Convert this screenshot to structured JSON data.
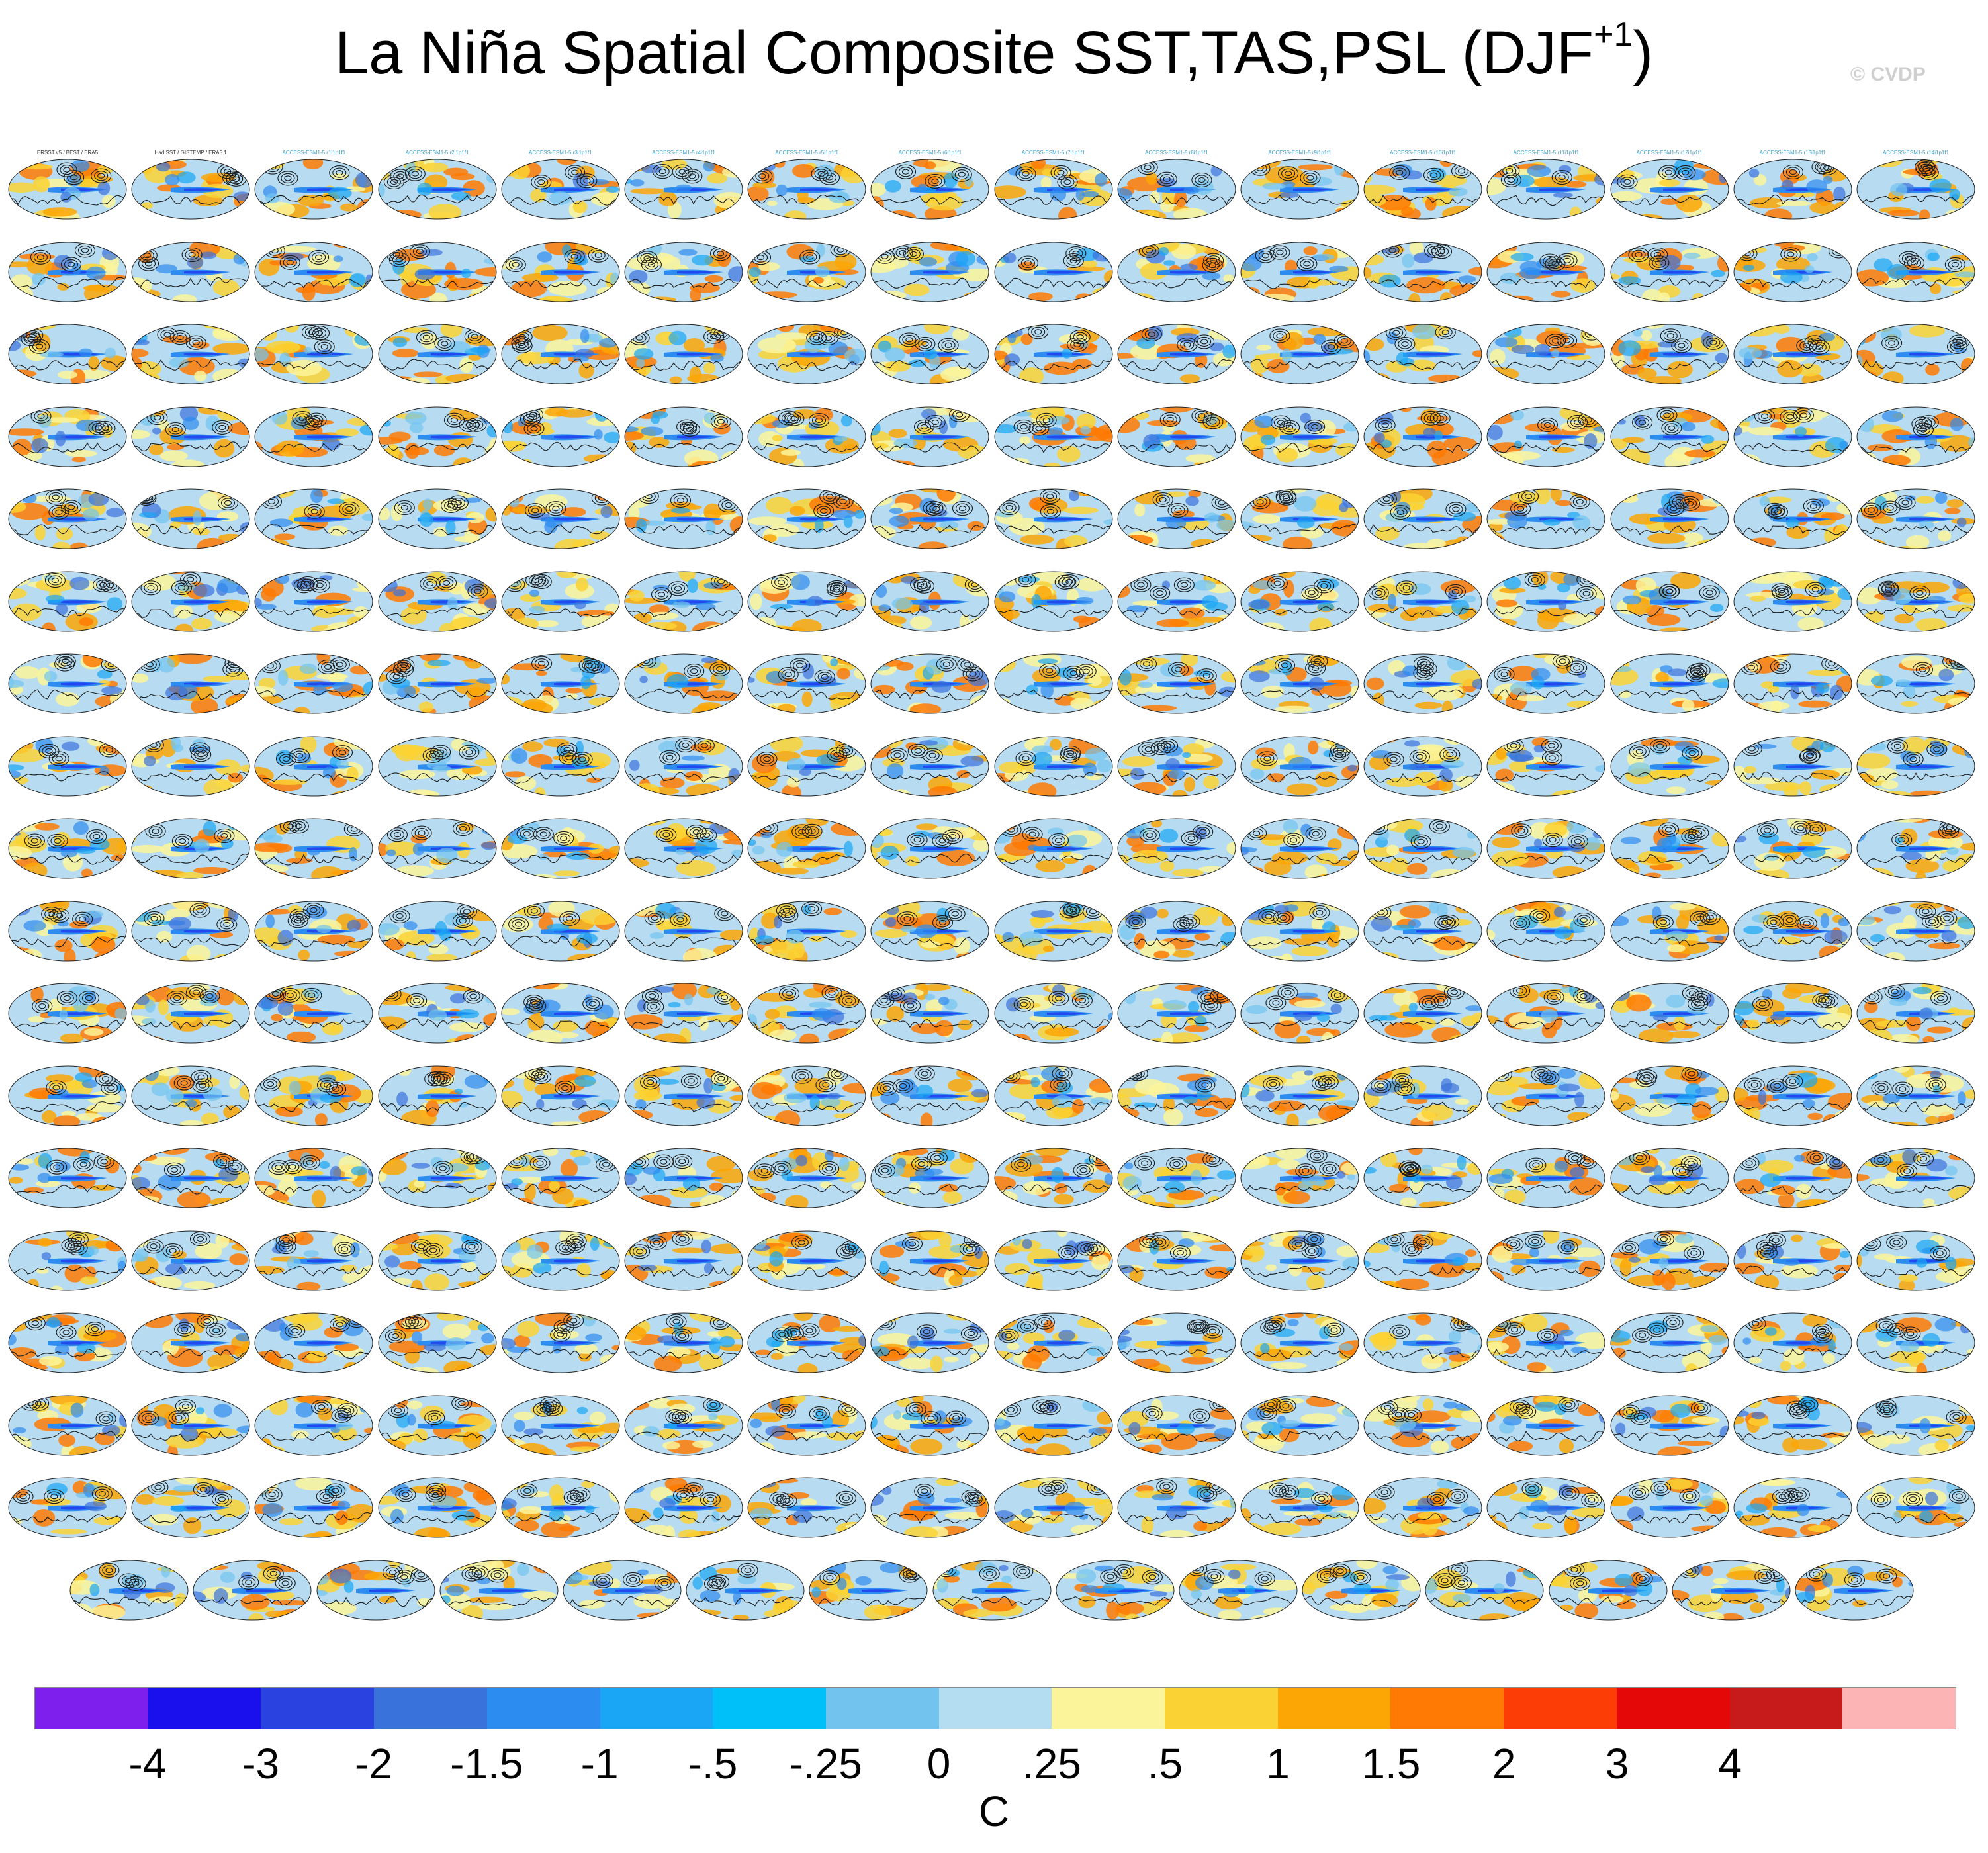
{
  "title": {
    "main": "La Niña Spatial Composite SST,TAS,PSL (DJF",
    "superscript": "+1",
    "close": ")"
  },
  "watermark": "© CVDP",
  "panel_grid": {
    "full_rows": 17,
    "panels_per_full_row": 16,
    "last_row_panels": 15
  },
  "panel_titles": [
    "ERSST v5 / BEST / ERA5",
    "HadISST / GISTEMP / ERA5.1",
    "ACCESS-ESM1-5 r1i1p1f1",
    "ACCESS-ESM1-5 r2i1p1f1",
    "ACCESS-ESM1-5 r3i1p1f1",
    "ACCESS-ESM1-5 r4i1p1f1",
    "ACCESS-ESM1-5 r5i1p1f1",
    "ACCESS-ESM1-5 r6i1p1f1",
    "ACCESS-ESM1-5 r7i1p1f1",
    "ACCESS-ESM1-5 r8i1p1f1",
    "ACCESS-ESM1-5 r9i1p1f1",
    "ACCESS-ESM1-5 r10i1p1f1",
    "ACCESS-ESM1-5 r11i1p1f1",
    "ACCESS-ESM1-5 r12i1p1f1",
    "ACCESS-ESM1-5 r13i1p1f1",
    "ACCESS-ESM1-5 r14i1p1f1"
  ],
  "colors": {
    "title_text": "#000000",
    "watermark": "#cfcfcf",
    "panel_title": "#3aa0c8",
    "contour": "#1a1a1a",
    "ocean_base": "#b7dbf0",
    "land": "#eeeeee"
  },
  "colorbar": {
    "colors": [
      "#7e1fee",
      "#1a10ee",
      "#2a43e0",
      "#3a72dc",
      "#2d8cef",
      "#1aa6f5",
      "#00c0fa",
      "#72c4ef",
      "#b4ddf1",
      "#fbf49a",
      "#fbd233",
      "#fca606",
      "#fe7a04",
      "#fc3e06",
      "#e40808",
      "#c71a1a",
      "#fcb4b4"
    ],
    "tick_labels": [
      "-4",
      "-3",
      "-2",
      "-1.5",
      "-1",
      "-.5",
      "-.25",
      "0",
      ".25",
      ".5",
      "1",
      "1.5",
      "2",
      "3",
      "4"
    ],
    "unit": "C"
  }
}
